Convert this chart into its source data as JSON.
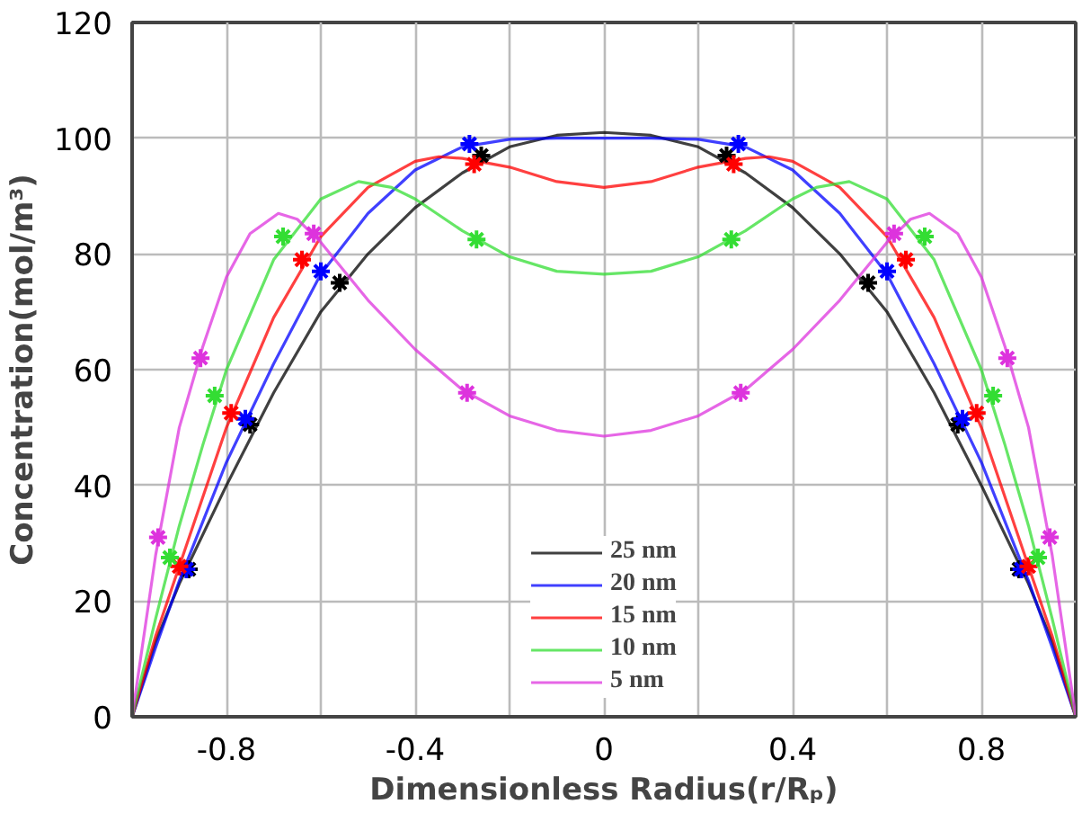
{
  "chart_data": {
    "type": "line",
    "xlabel": "Dimensionless Radius(r/Rₚ)",
    "ylabel": "Concentration(mol/m³)",
    "xlim": [
      -1,
      1
    ],
    "ylim": [
      0,
      120
    ],
    "xticks": [
      -0.8,
      {
        "value": -0.6,
        "label": null
      },
      -0.4,
      {
        "value": -0.2,
        "label": null
      },
      0,
      {
        "value": 0.2,
        "label": null
      },
      0.4,
      {
        "value": 0.6,
        "label": null
      },
      0.8
    ],
    "yticks": [
      0,
      20,
      40,
      60,
      80,
      100,
      120
    ],
    "grid": true,
    "legend": "bottom",
    "line_style": "solid",
    "series": [
      {
        "name": "25 nm",
        "color": "#000000",
        "marker": "none",
        "x": [
          -1,
          -0.95,
          -0.9,
          -0.8,
          -0.7,
          -0.6,
          -0.5,
          -0.4,
          -0.3,
          -0.2,
          -0.1,
          0,
          0.1,
          0.2,
          0.3,
          0.4,
          0.5,
          0.6,
          0.7,
          0.8,
          0.9,
          0.95,
          1
        ],
        "values": [
          0,
          13,
          23,
          40,
          56,
          70,
          80,
          88,
          94,
          98.5,
          100.5,
          101,
          100.5,
          98.5,
          94,
          88,
          80,
          70,
          56,
          40,
          23,
          13,
          0
        ]
      },
      {
        "name": "20 nm",
        "color": "#0000ff",
        "marker": "none",
        "x": [
          -1,
          -0.95,
          -0.9,
          -0.8,
          -0.7,
          -0.6,
          -0.5,
          -0.4,
          -0.3,
          -0.2,
          -0.1,
          0,
          0.1,
          0.2,
          0.3,
          0.4,
          0.5,
          0.6,
          0.7,
          0.8,
          0.9,
          0.95,
          1
        ],
        "values": [
          0,
          12,
          23.5,
          44,
          61,
          76.5,
          87,
          94.5,
          98.5,
          99.8,
          100,
          100,
          100,
          99.8,
          98.5,
          94.5,
          87,
          76.5,
          61,
          44,
          23.5,
          12,
          0
        ]
      },
      {
        "name": "15 nm",
        "color": "#ff0000",
        "marker": "none",
        "x": [
          -1,
          -0.95,
          -0.9,
          -0.8,
          -0.7,
          -0.6,
          -0.5,
          -0.4,
          -0.35,
          -0.3,
          -0.2,
          -0.1,
          0,
          0.1,
          0.2,
          0.3,
          0.35,
          0.4,
          0.5,
          0.6,
          0.7,
          0.8,
          0.9,
          0.95,
          1
        ],
        "values": [
          0,
          14,
          26,
          50,
          69,
          83,
          91.5,
          96,
          96.8,
          96.5,
          95,
          92.5,
          91.5,
          92.5,
          95,
          96.5,
          96.8,
          96,
          91.5,
          83,
          69,
          50,
          26,
          14,
          0
        ]
      },
      {
        "name": "10 nm",
        "color": "#33dd33",
        "marker": "none",
        "x": [
          -1,
          -0.95,
          -0.9,
          -0.85,
          -0.8,
          -0.7,
          -0.6,
          -0.52,
          -0.45,
          -0.4,
          -0.3,
          -0.2,
          -0.1,
          0,
          0.1,
          0.2,
          0.3,
          0.4,
          0.45,
          0.52,
          0.6,
          0.7,
          0.8,
          0.85,
          0.9,
          0.95,
          1
        ],
        "values": [
          0,
          17,
          33,
          47,
          60,
          79,
          89.5,
          92.5,
          91.5,
          89.5,
          84,
          79.5,
          77,
          76.5,
          77,
          79.5,
          84,
          89.5,
          91.5,
          92.5,
          89.5,
          79,
          60,
          47,
          33,
          17,
          0
        ]
      },
      {
        "name": "5 nm",
        "color": "#dd33dd",
        "marker": "none",
        "x": [
          -1,
          -0.95,
          -0.9,
          -0.85,
          -0.8,
          -0.75,
          -0.69,
          -0.65,
          -0.6,
          -0.5,
          -0.4,
          -0.3,
          -0.2,
          -0.1,
          0,
          0.1,
          0.2,
          0.3,
          0.4,
          0.5,
          0.6,
          0.65,
          0.69,
          0.75,
          0.8,
          0.85,
          0.9,
          0.95,
          1
        ],
        "values": [
          0,
          28,
          50,
          64,
          76,
          83.5,
          87,
          86,
          82,
          72,
          63.5,
          56.5,
          52,
          49.5,
          48.5,
          49.5,
          52,
          56.5,
          63.5,
          72,
          82,
          86,
          87,
          83.5,
          76,
          64,
          50,
          28,
          0
        ]
      },
      {
        "color": "#000000",
        "type": "scatter",
        "marker": "cross",
        "x": [
          -0.88,
          -0.75,
          -0.56,
          -0.26,
          0.26,
          0.56,
          0.75,
          0.88
        ],
        "values": [
          25.5,
          50.5,
          75,
          97,
          97,
          75,
          50.5,
          25.5
        ]
      },
      {
        "color": "#0000ff",
        "type": "scatter",
        "marker": "cross",
        "x": [
          -0.885,
          -0.76,
          -0.6,
          -0.285,
          0.285,
          0.6,
          0.76,
          0.885
        ],
        "values": [
          25.5,
          51.5,
          77,
          99,
          99,
          77,
          51.5,
          25.5
        ]
      },
      {
        "color": "#ff0000",
        "type": "scatter",
        "marker": "cross",
        "x": [
          -0.9,
          -0.79,
          -0.64,
          -0.275,
          0.275,
          0.64,
          0.79,
          0.9
        ],
        "values": [
          26,
          52.5,
          79,
          95.5,
          95.5,
          79,
          52.5,
          26
        ]
      },
      {
        "color": "#33dd33",
        "type": "scatter",
        "marker": "cross",
        "x": [
          -0.92,
          -0.825,
          -0.68,
          -0.27,
          0.27,
          0.68,
          0.825,
          0.92
        ],
        "values": [
          27.5,
          55.5,
          83,
          82.5,
          82.5,
          83,
          55.5,
          27.5
        ]
      },
      {
        "color": "#dd33dd",
        "type": "scatter",
        "marker": "cross",
        "x": [
          -0.945,
          -0.855,
          -0.615,
          -0.29,
          0.29,
          0.615,
          0.855,
          0.945
        ],
        "values": [
          31,
          62,
          83.5,
          56,
          56,
          83.5,
          62,
          31
        ]
      }
    ]
  }
}
